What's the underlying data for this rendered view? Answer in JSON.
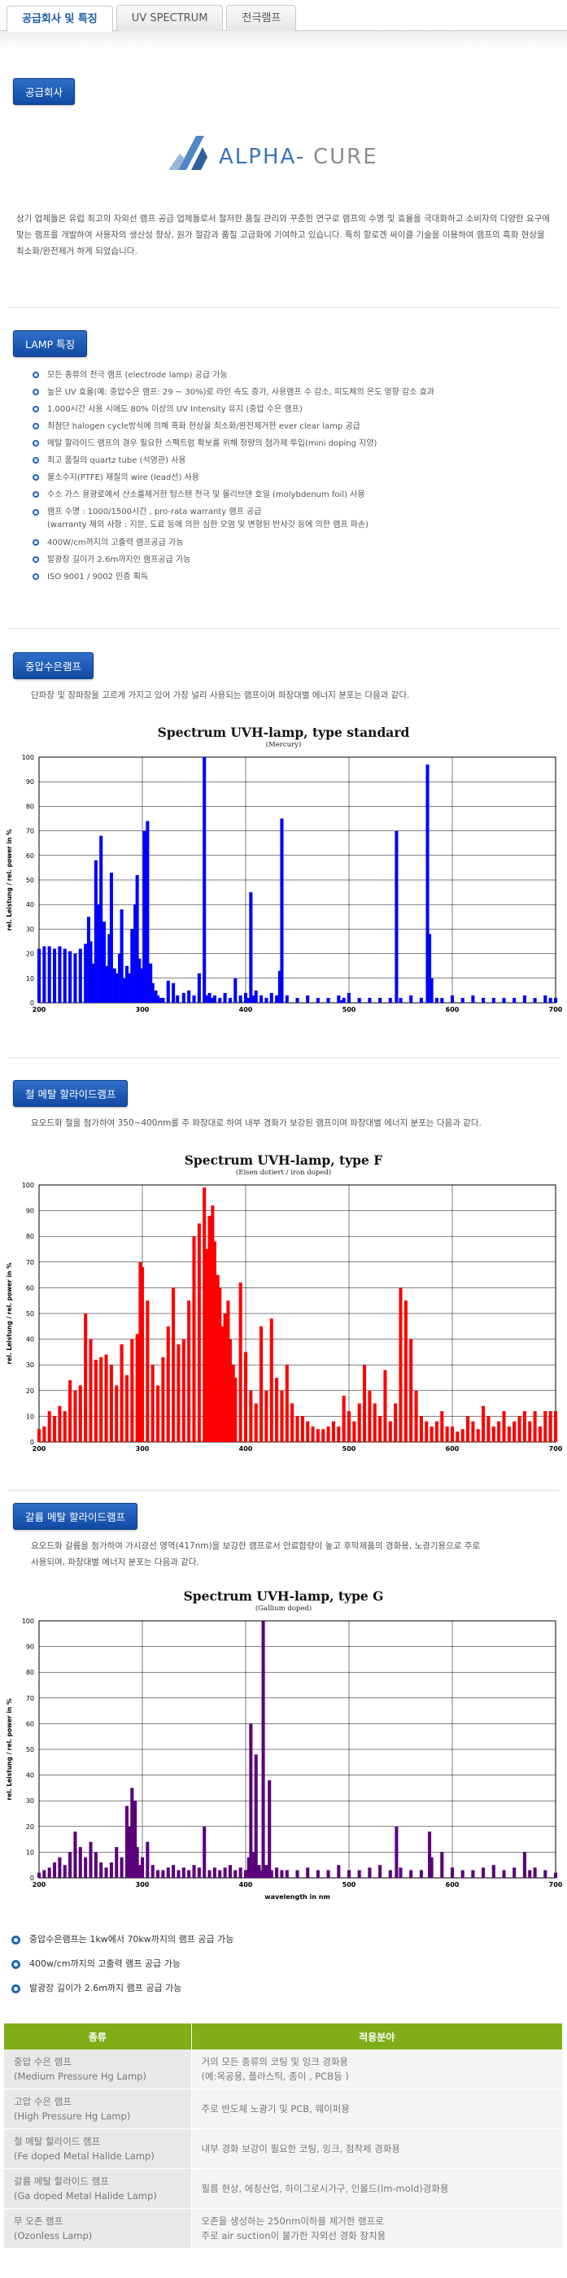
{
  "tabs": [
    {
      "label": "공급회사 및 특징",
      "active": true
    },
    {
      "label": "UV SPECTRUM",
      "active": false
    },
    {
      "label": "전극램프",
      "active": false
    }
  ],
  "supplier": {
    "badge": "공급회사",
    "logo_text_a": "ALPHA-",
    "logo_text_b": "CURE",
    "description": "상기 업체들은 유럽 최고의 자외선 램프 공급 업체들로서 철저한 품질 관리와 꾸준한 연구로 램프의 수명 및 효율을 극대화하고 소비자의 다양한 요구에 맞는 램프를 개발하여 사용자의 생산성 향상, 원가 절감과 품질 고급화에 기여하고 있습니다. 특히 할로겐 싸이클 기술을 이용하여 램프의 흑화 현상을 최소화/완전제거 하게 되었습니다."
  },
  "lamp": {
    "badge": "LAMP 특징",
    "features": [
      "모든 종류의 전극 램프 (electrode lamp) 공급 가능",
      "높은 UV 효율(예: 중압수은 램프: 29 ~ 30%)로 라인 속도 증가, 사용램프 수 감소, 피도체의 온도 영향 감소 효과",
      "1,000시간 사용 시에도 80% 이상의 UV Intensity 유지 (중압 수은 램프)",
      "최첨단 halogen cycle방식에 의해 흑화 현상을 최소화/완전제거한 ever clear lamp 공급",
      "메탈 할라이드 램프의 경우 필요한 스펙트럼 확보를 위해 정량의 첨가제 투입(mini doping 지양)",
      "최고 품질의 quartz tube (석영관) 사용",
      "불소수지(PTFE) 재질의 wire (lead선) 사용",
      "수소 가스 용광로에서 산소를제거한 텅스텐 전극 및 몰리브덴 호일 (molybdenum foil) 사용",
      "램프 수명 : 1000/1500시간 , pro-rata warranty 램프 공급",
      "400W/cm까지의 고출력 램프공급 가능",
      "발광장 길이가 2.6m까지인 램프공급 가능",
      "ISO 9001 / 9002 인증 획득"
    ],
    "feature_note": "(warranty 제외 사항 : 지문, 도료 등에 의한 심한 오염 및 변형된 반사갓 등에 의한 램프 파손)"
  },
  "mercury": {
    "badge": "중압수은램프",
    "description": "단파장 및 장파장을 고르게 가지고 있어 가장 널리 사용되는 램프이며 파장대별 에너지 분포는 다음과 같다."
  },
  "iron": {
    "badge": "철 메탈 할라이드램프",
    "description": "요오드화 철을 첨가하여 350~400nm를 주 파장대로 하여 내부 경화가 보강된 램프이며 파장대별 에너지 분포는 다음과 같다."
  },
  "gallium": {
    "badge": "갈륨 메탈 할라이드램프",
    "description_1": "요오드화 갈륨을 첨가하여 가시광선 영역(417nm)을 보강한 램프로서 안료함량이 높고 후막제품의 경화용, 노광기용으로 주로",
    "description_2": "사용되며, 파장대별 에너지 분포는 다음과 같다."
  },
  "chart_data": [
    {
      "type": "bar",
      "title": "Spectrum UVH-lamp, type standard",
      "subtitle": "(Mercury)",
      "xlabel": "",
      "ylabel": "rel. Leistung / rel. power  in %",
      "color": "#0000ff",
      "xlim": [
        200,
        700
      ],
      "ylim": [
        0,
        100
      ],
      "xticks": [
        200,
        300,
        400,
        500,
        600,
        700
      ],
      "yticks": [
        0,
        10,
        20,
        30,
        40,
        50,
        60,
        70,
        80,
        90,
        100
      ],
      "x": [
        200,
        205,
        210,
        215,
        220,
        225,
        230,
        235,
        240,
        245,
        248,
        250,
        253,
        255,
        258,
        260,
        263,
        265,
        268,
        270,
        273,
        275,
        278,
        280,
        283,
        285,
        288,
        290,
        293,
        295,
        297,
        300,
        302,
        305,
        308,
        310,
        313,
        315,
        318,
        320,
        325,
        330,
        334,
        340,
        345,
        350,
        355,
        360,
        362,
        365,
        367,
        370,
        375,
        380,
        385,
        390,
        395,
        400,
        402,
        405,
        408,
        410,
        415,
        420,
        425,
        430,
        433,
        435,
        440,
        450,
        460,
        470,
        480,
        490,
        492,
        495,
        500,
        510,
        520,
        530,
        540,
        546,
        550,
        560,
        570,
        576,
        578,
        580,
        585,
        590,
        600,
        610,
        620,
        630,
        640,
        650,
        660,
        670,
        680,
        690,
        695,
        700
      ],
      "values": [
        22,
        23,
        23,
        22,
        23,
        22,
        21,
        20,
        22,
        24,
        35,
        25,
        16,
        58,
        40,
        68,
        33,
        15,
        28,
        53,
        14,
        12,
        20,
        38,
        10,
        15,
        12,
        30,
        40,
        52,
        18,
        14,
        70,
        74,
        16,
        8,
        5,
        3,
        2,
        2,
        9,
        8,
        3,
        4,
        5,
        3,
        12,
        100,
        3,
        4,
        2,
        3,
        2,
        4,
        2,
        10,
        3,
        4,
        2,
        45,
        3,
        5,
        3,
        2,
        4,
        3,
        13,
        75,
        3,
        2,
        3,
        2,
        2,
        3,
        1,
        2,
        4,
        2,
        2,
        2,
        2,
        70,
        2,
        3,
        2,
        97,
        28,
        10,
        2,
        2,
        3,
        2,
        3,
        2,
        2,
        2,
        2,
        3,
        2,
        3,
        2,
        2
      ]
    },
    {
      "type": "bar",
      "title": "Spectrum UVH-lamp, type F",
      "subtitle": "(Eisen dotiert / iron doped)",
      "xlabel": "",
      "ylabel": "rel. Leistung / rel. power  in %",
      "color": "#ff0000",
      "xlim": [
        200,
        700
      ],
      "ylim": [
        0,
        100
      ],
      "xticks": [
        200,
        300,
        400,
        500,
        600,
        700
      ],
      "yticks": [
        0,
        10,
        20,
        30,
        40,
        50,
        60,
        70,
        80,
        90,
        100
      ],
      "x": [
        200,
        205,
        210,
        215,
        220,
        225,
        230,
        235,
        240,
        245,
        250,
        255,
        260,
        265,
        270,
        275,
        280,
        285,
        290,
        295,
        298,
        300,
        305,
        310,
        315,
        320,
        325,
        330,
        335,
        340,
        345,
        350,
        355,
        360,
        363,
        365,
        368,
        370,
        373,
        375,
        378,
        380,
        383,
        385,
        388,
        390,
        395,
        400,
        405,
        410,
        415,
        420,
        425,
        430,
        435,
        440,
        445,
        450,
        455,
        460,
        465,
        470,
        475,
        480,
        485,
        490,
        495,
        500,
        505,
        510,
        515,
        520,
        525,
        530,
        535,
        540,
        545,
        550,
        555,
        560,
        565,
        570,
        575,
        580,
        585,
        590,
        595,
        600,
        605,
        610,
        615,
        620,
        625,
        630,
        635,
        640,
        645,
        650,
        655,
        660,
        665,
        670,
        675,
        680,
        685,
        690,
        695,
        700
      ],
      "values": [
        5,
        6,
        12,
        10,
        14,
        12,
        24,
        20,
        22,
        50,
        40,
        32,
        33,
        34,
        30,
        22,
        38,
        26,
        40,
        42,
        70,
        68,
        55,
        30,
        22,
        33,
        45,
        60,
        38,
        40,
        55,
        80,
        85,
        99,
        75,
        88,
        92,
        78,
        65,
        60,
        45,
        50,
        55,
        40,
        30,
        25,
        62,
        35,
        20,
        15,
        45,
        20,
        48,
        25,
        20,
        30,
        15,
        10,
        10,
        8,
        6,
        5,
        5,
        6,
        8,
        6,
        18,
        12,
        8,
        15,
        30,
        20,
        15,
        10,
        28,
        8,
        15,
        60,
        55,
        40,
        20,
        10,
        8,
        6,
        8,
        12,
        6,
        6,
        4,
        5,
        10,
        8,
        5,
        14,
        10,
        6,
        8,
        12,
        6,
        8,
        10,
        12,
        8,
        12,
        6,
        12,
        12,
        12
      ]
    },
    {
      "type": "bar",
      "title": "Spectrum UVH-lamp, type G",
      "subtitle": "(Gallium doped)",
      "xlabel": "wavelength in nm",
      "ylabel": "rel. Leistung / rel. power  in %",
      "color": "#5a007a",
      "xlim": [
        200,
        700
      ],
      "ylim": [
        0,
        100
      ],
      "xticks": [
        200,
        300,
        400,
        500,
        600,
        700
      ],
      "yticks": [
        0,
        10,
        20,
        30,
        40,
        50,
        60,
        70,
        80,
        90,
        100
      ],
      "x": [
        200,
        205,
        210,
        215,
        220,
        225,
        230,
        235,
        240,
        245,
        250,
        255,
        260,
        265,
        270,
        275,
        280,
        285,
        288,
        290,
        293,
        295,
        297,
        300,
        305,
        310,
        315,
        320,
        325,
        330,
        335,
        340,
        345,
        350,
        355,
        360,
        365,
        370,
        375,
        380,
        385,
        390,
        395,
        400,
        403,
        405,
        408,
        410,
        413,
        415,
        417,
        420,
        423,
        425,
        430,
        435,
        440,
        450,
        460,
        470,
        480,
        490,
        500,
        510,
        520,
        530,
        540,
        546,
        550,
        560,
        570,
        578,
        580,
        590,
        600,
        610,
        620,
        630,
        640,
        650,
        660,
        670,
        675,
        680,
        690,
        700
      ],
      "values": [
        2,
        3,
        4,
        6,
        8,
        5,
        10,
        18,
        12,
        8,
        14,
        10,
        6,
        4,
        6,
        12,
        8,
        28,
        20,
        35,
        30,
        12,
        5,
        8,
        14,
        5,
        3,
        3,
        4,
        5,
        3,
        4,
        3,
        5,
        4,
        20,
        3,
        4,
        3,
        4,
        5,
        3,
        4,
        3,
        8,
        60,
        10,
        48,
        5,
        3,
        100,
        5,
        38,
        3,
        4,
        3,
        3,
        3,
        4,
        3,
        3,
        5,
        3,
        3,
        4,
        5,
        3,
        20,
        4,
        3,
        3,
        18,
        8,
        10,
        4,
        3,
        3,
        4,
        5,
        3,
        4,
        10,
        3,
        4,
        3,
        2
      ]
    }
  ],
  "bottom_bullets": [
    "중압수은램프는 1kw에서 70kw까지의 램프 공급 가능",
    "400w/cm까지의 고출력 램프 공급 가능",
    "발광장 길이가 2.6m까지 램프 공급 가능"
  ],
  "table": {
    "headers": [
      "종류",
      "적용분야"
    ],
    "rows": [
      {
        "type": "중압 수은 램프",
        "type_en": "(Medium Pressure Hg Lamp)",
        "use_1": "거의 모든 종류의 코팅 및 잉크 경화용",
        "use_2": "(예:목공용, 플라스틱, 종이 , PCB등 )"
      },
      {
        "type": "고압 수은 램프",
        "type_en": "(High Pressure Hg Lamp)",
        "use_1": "주로 반도체 노광기 및 PCB, 웨이퍼용",
        "use_2": ""
      },
      {
        "type": "철 메탈 할라이드 램프",
        "type_en": "(Fe doped Metal Halide Lamp)",
        "use_1": "내부 경화 보강이 필요한 코팅, 잉크, 점착제 경화용",
        "use_2": ""
      },
      {
        "type": "갈륨 메탈 할라이드 램프",
        "type_en": "(Ga doped Metal Halide Lamp)",
        "use_1": "필름 현상, 에칭산업, 하이그로시가구, 인몰드(lm-mold)경화용",
        "use_2": ""
      },
      {
        "type": "무 오존 램프",
        "type_en": "(Ozonless Lamp)",
        "use_1": "오존을 생성하는 250nm이하를 제거한 램프로",
        "use_2": "주로 air suction이 불가한 자외선 경화 장치용"
      }
    ]
  }
}
